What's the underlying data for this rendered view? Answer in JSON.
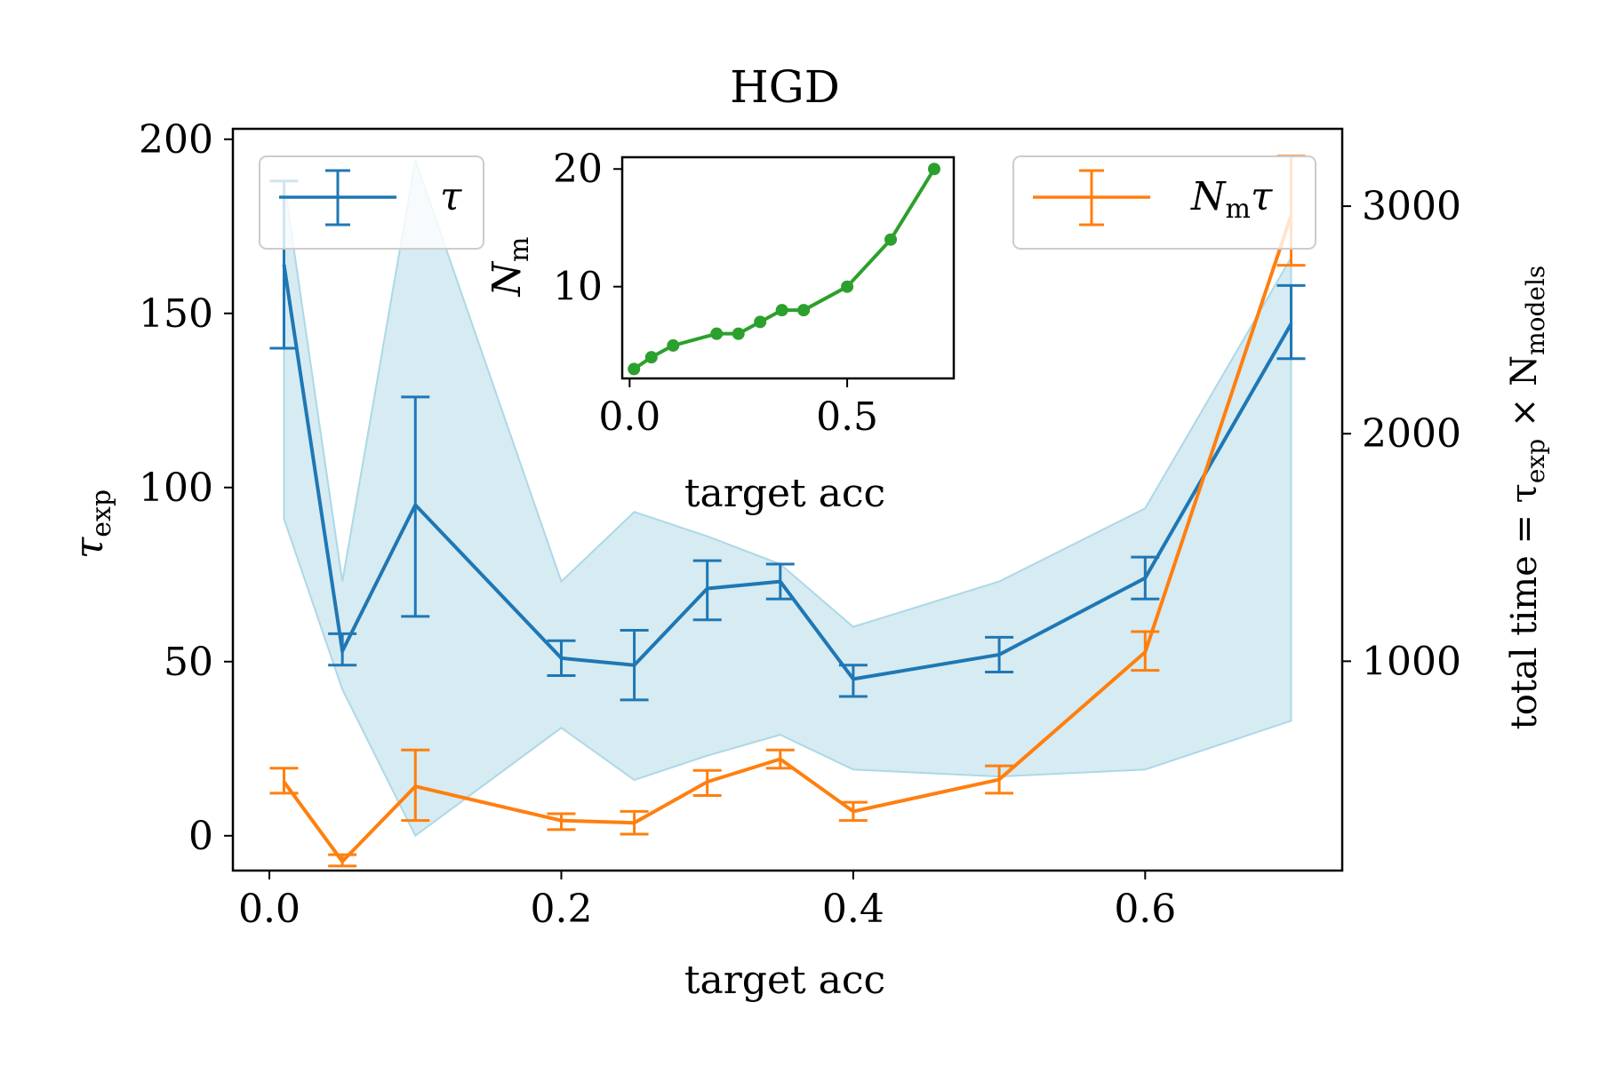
{
  "chart_data": [
    {
      "type": "line",
      "title": "HGD",
      "xlabel": "target acc",
      "ylabel": "τ",
      "ylabel_sub": "exp",
      "y2label_main": "total time = τ",
      "y2label_sub": "exp",
      "y2label_mid": " × N",
      "y2label_sub2": "models",
      "xlim": [
        -0.025,
        0.735
      ],
      "ylim": [
        -10,
        203
      ],
      "y2lim": [
        80,
        3340
      ],
      "xticks": [
        0.0,
        0.2,
        0.4,
        0.6
      ],
      "xtick_labels": [
        "0.0",
        "0.2",
        "0.4",
        "0.6"
      ],
      "yticks": [
        0,
        50,
        100,
        150,
        200
      ],
      "ytick_labels": [
        "0",
        "50",
        "100",
        "150",
        "200"
      ],
      "y2ticks": [
        1000,
        2000,
        3000
      ],
      "y2tick_labels": [
        "1000",
        "2000",
        "3000"
      ],
      "x": [
        0.01,
        0.05,
        0.1,
        0.2,
        0.25,
        0.3,
        0.35,
        0.4,
        0.5,
        0.6,
        0.7
      ],
      "band": {
        "name": "spread",
        "color": "#add8e6",
        "lower": [
          91,
          42,
          0,
          31,
          16,
          23,
          29,
          19,
          17,
          19,
          33
        ],
        "upper": [
          188,
          73,
          194,
          73,
          93,
          86,
          78,
          60,
          73,
          94,
          166
        ]
      },
      "series": [
        {
          "name": "τ",
          "axis": "left",
          "color": "#1f77b4",
          "values": [
            164,
            53,
            95,
            51,
            49,
            71,
            73,
            45,
            52,
            74,
            147
          ],
          "err_lo": [
            140,
            49,
            63,
            46,
            39,
            62,
            68,
            40,
            47,
            68,
            137
          ],
          "err_hi": [
            188,
            58,
            126,
            56,
            59,
            79,
            78,
            49,
            57,
            80,
            158
          ]
        },
        {
          "name": "N_m τ",
          "legend_main": "N",
          "legend_sub": "m",
          "legend_tail": "τ",
          "axis": "right",
          "color": "#ff7f0e",
          "values": [
            470,
            120,
            450,
            300,
            290,
            470,
            570,
            340,
            480,
            1040,
            2960
          ],
          "err_lo": [
            420,
            100,
            300,
            260,
            240,
            410,
            530,
            300,
            420,
            960,
            2740
          ],
          "err_hi": [
            530,
            150,
            610,
            330,
            340,
            520,
            610,
            380,
            540,
            1130,
            3220
          ]
        }
      ],
      "legend_left": "top-left",
      "legend_right": "top-right"
    },
    {
      "type": "line",
      "title": "",
      "xlabel": "target acc",
      "ylabel_main": "N",
      "ylabel_sub": "m",
      "xlim": [
        -0.017,
        0.745
      ],
      "ylim": [
        2.2,
        21
      ],
      "xticks": [
        0.0,
        0.5
      ],
      "xtick_labels": [
        "0.0",
        "0.5"
      ],
      "yticks": [
        10,
        20
      ],
      "ytick_labels": [
        "10",
        "20"
      ],
      "series": [
        {
          "name": "N_m",
          "color": "#2ca02c",
          "x": [
            0.01,
            0.05,
            0.1,
            0.2,
            0.25,
            0.3,
            0.35,
            0.4,
            0.5,
            0.6,
            0.7
          ],
          "values": [
            3,
            4,
            5,
            6,
            6,
            7,
            8,
            8,
            10,
            14,
            20
          ]
        }
      ]
    }
  ]
}
